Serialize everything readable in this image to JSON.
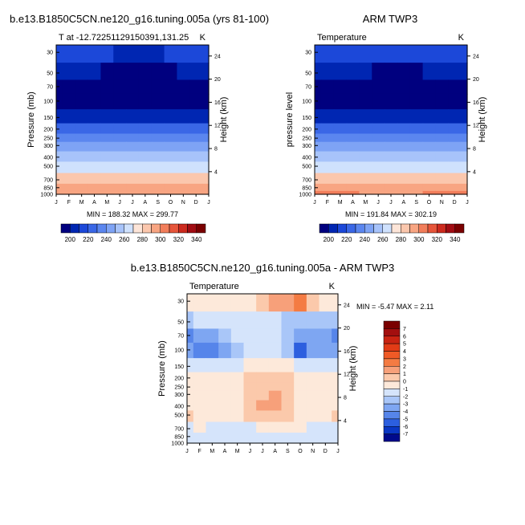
{
  "chart_data": [
    {
      "type": "heatmap",
      "title": "b.e13.B1850C5CN.ne120_g16.tuning.005a (yrs 81-100)",
      "subtitle_left": "T at -12.72251129150391,131.25",
      "subtitle_right": "K",
      "xlabel": "",
      "ylabel": "Pressure (mb)",
      "ylabel_right": "Height (km)",
      "x_ticks": [
        "J",
        "F",
        "M",
        "A",
        "M",
        "J",
        "J",
        "A",
        "S",
        "O",
        "N",
        "D",
        "J"
      ],
      "y_ticks": [
        "30",
        "50",
        "70",
        "100",
        "150",
        "200",
        "250",
        "300",
        "400",
        "500",
        "700",
        "850",
        "1000"
      ],
      "y_right_ticks": [
        "24",
        "20",
        "16",
        "12",
        "8",
        "4"
      ],
      "stats": "MIN = 188.32 MAX = 299.77",
      "colorbar_labels": [
        "200",
        "220",
        "240",
        "260",
        "280",
        "300",
        "320",
        "340"
      ],
      "colorbar_colors": [
        "#00007f",
        "#0026b2",
        "#1c48d9",
        "#3a67e6",
        "#5b86ef",
        "#7ea3f5",
        "#a7c3fa",
        "#cfe1fd",
        "#fde5d8",
        "#fbc7ad",
        "#f8a582",
        "#f27e5b",
        "#e6553a",
        "#cc2a1e",
        "#a10c12",
        "#7a0000"
      ],
      "levels": [
        200,
        210,
        220,
        230,
        240,
        250,
        260,
        270,
        280,
        290,
        300,
        310,
        320,
        330,
        340
      ],
      "month_values": {
        "30": [
          210,
          210,
          211,
          211,
          210,
          209,
          208,
          208,
          209,
          210,
          211,
          211,
          210
        ],
        "50": [
          203,
          203,
          202,
          200,
          198,
          196,
          195,
          195,
          196,
          198,
          200,
          202,
          203
        ],
        "70": [
          192,
          192,
          192,
          192,
          193,
          194,
          195,
          195,
          194,
          193,
          192,
          192,
          192
        ],
        "100": [
          193,
          193,
          193,
          193,
          194,
          194,
          195,
          195,
          194,
          194,
          193,
          193,
          193
        ],
        "150": [
          207,
          207,
          207,
          207,
          207,
          207,
          207,
          207,
          207,
          207,
          207,
          207,
          207
        ],
        "200": [
          221,
          221,
          221,
          221,
          221,
          221,
          221,
          221,
          221,
          221,
          221,
          221,
          221
        ],
        "250": [
          231,
          231,
          231,
          231,
          231,
          231,
          231,
          231,
          231,
          231,
          231,
          231,
          231
        ],
        "300": [
          241,
          241,
          241,
          241,
          241,
          241,
          241,
          241,
          241,
          241,
          241,
          241,
          241
        ],
        "400": [
          257,
          257,
          257,
          257,
          257,
          257,
          257,
          257,
          257,
          257,
          257,
          257,
          257
        ],
        "500": [
          267,
          267,
          267,
          267,
          267,
          267,
          267,
          267,
          267,
          267,
          267,
          267,
          267
        ],
        "700": [
          283,
          283,
          283,
          282,
          281,
          280,
          280,
          280,
          281,
          282,
          283,
          283,
          283
        ],
        "850": [
          293,
          293,
          293,
          292,
          291,
          290,
          290,
          290,
          291,
          292,
          293,
          293,
          293
        ],
        "1000": [
          299,
          299,
          299,
          298,
          297,
          296,
          296,
          296,
          297,
          298,
          299,
          299,
          299
        ]
      }
    },
    {
      "type": "heatmap",
      "title": "ARM TWP3",
      "subtitle_left": "Temperature",
      "subtitle_right": "K",
      "xlabel": "",
      "ylabel": "pressure level",
      "ylabel_right": "Height (km)",
      "x_ticks": [
        "J",
        "F",
        "M",
        "A",
        "M",
        "J",
        "J",
        "A",
        "S",
        "O",
        "N",
        "D",
        "J"
      ],
      "y_ticks": [
        "30",
        "50",
        "70",
        "100",
        "150",
        "200",
        "250",
        "300",
        "400",
        "500",
        "700",
        "850",
        "1000"
      ],
      "y_right_ticks": [
        "24",
        "20",
        "16",
        "12",
        "8",
        "4"
      ],
      "stats": "MIN = 191.84 MAX = 302.19",
      "colorbar_labels": [
        "200",
        "220",
        "240",
        "260",
        "280",
        "300",
        "320",
        "340"
      ],
      "colorbar_colors": [
        "#00007f",
        "#0026b2",
        "#1c48d9",
        "#3a67e6",
        "#5b86ef",
        "#7ea3f5",
        "#a7c3fa",
        "#cfe1fd",
        "#fde5d8",
        "#fbc7ad",
        "#f8a582",
        "#f27e5b",
        "#e6553a",
        "#cc2a1e",
        "#a10c12",
        "#7a0000"
      ],
      "levels": [
        200,
        210,
        220,
        230,
        240,
        250,
        260,
        270,
        280,
        290,
        300,
        310,
        320,
        330,
        340
      ],
      "month_values": {
        "30": [
          215,
          215,
          216,
          216,
          215,
          214,
          213,
          213,
          214,
          215,
          216,
          216,
          215
        ],
        "50": [
          206,
          206,
          205,
          203,
          201,
          199,
          198,
          198,
          199,
          201,
          203,
          205,
          206
        ],
        "70": [
          196,
          196,
          196,
          195,
          194,
          193,
          193,
          193,
          194,
          195,
          196,
          196,
          196
        ],
        "100": [
          194,
          194,
          194,
          194,
          195,
          195,
          196,
          196,
          195,
          195,
          194,
          194,
          194
        ],
        "150": [
          208,
          208,
          208,
          208,
          208,
          208,
          208,
          208,
          208,
          208,
          208,
          208,
          208
        ],
        "200": [
          222,
          222,
          222,
          222,
          222,
          222,
          222,
          222,
          222,
          222,
          222,
          222,
          222
        ],
        "250": [
          232,
          232,
          232,
          232,
          232,
          232,
          232,
          232,
          232,
          232,
          232,
          232,
          232
        ],
        "300": [
          242,
          242,
          242,
          242,
          242,
          242,
          242,
          242,
          242,
          242,
          242,
          242,
          242
        ],
        "400": [
          257,
          257,
          257,
          257,
          257,
          257,
          257,
          257,
          257,
          257,
          257,
          257,
          257
        ],
        "500": [
          268,
          268,
          268,
          268,
          268,
          268,
          268,
          268,
          268,
          268,
          268,
          268,
          268
        ],
        "700": [
          284,
          284,
          284,
          283,
          282,
          281,
          281,
          281,
          282,
          283,
          284,
          284,
          284
        ],
        "850": [
          294,
          294,
          294,
          293,
          292,
          291,
          291,
          291,
          292,
          293,
          294,
          294,
          294
        ],
        "1000": [
          301,
          301,
          301,
          300,
          299,
          298,
          298,
          298,
          299,
          300,
          301,
          301,
          301
        ]
      }
    },
    {
      "type": "heatmap",
      "title": "b.e13.B1850C5CN.ne120_g16.tuning.005a - ARM TWP3",
      "subtitle_left": "Temperature",
      "subtitle_right": "K",
      "xlabel": "",
      "ylabel": "Pressure (mb)",
      "ylabel_right": "Height (km)",
      "x_ticks": [
        "J",
        "F",
        "M",
        "A",
        "M",
        "J",
        "J",
        "A",
        "S",
        "O",
        "N",
        "D",
        "J"
      ],
      "y_ticks": [
        "30",
        "50",
        "70",
        "100",
        "150",
        "200",
        "250",
        "300",
        "400",
        "500",
        "700",
        "850",
        "1000"
      ],
      "y_right_ticks": [
        "24",
        "20",
        "16",
        "12",
        "8",
        "4"
      ],
      "stats": "MIN =  -5.47 MAX =   2.11",
      "colorbar_labels": [
        "7",
        "6",
        "5",
        "4",
        "3",
        "2",
        "1",
        "0",
        "-1",
        "-2",
        "-3",
        "-4",
        "-5",
        "-6",
        "-7"
      ],
      "colorbar_colors": [
        "#7a0000",
        "#a30f0f",
        "#c92312",
        "#e23b16",
        "#ef5a26",
        "#f47b43",
        "#f7a07a",
        "#fbc9ab",
        "#fde9da",
        "#d5e4fb",
        "#a9c6f8",
        "#7ea6f2",
        "#5685ea",
        "#2c5fdf",
        "#0a37c4",
        "#000a8c"
      ],
      "levels": [
        -7,
        -6,
        -5,
        -4,
        -3,
        -2,
        -1,
        0,
        1,
        2,
        3,
        4,
        5,
        6,
        7
      ],
      "month_values": {
        "30": [
          -0.5,
          -0.3,
          -0.2,
          -0.5,
          -0.8,
          -0.6,
          0.4,
          1.2,
          1.8,
          2.1,
          0.6,
          -0.3,
          -0.5
        ],
        "50": [
          -2.5,
          -2.0,
          -1.8,
          -1.5,
          -1.6,
          -1.8,
          -1.5,
          -1.8,
          -2.2,
          -2.6,
          -2.4,
          -2.2,
          -2.5
        ],
        "70": [
          -4.2,
          -3.9,
          -3.3,
          -2.6,
          -1.8,
          -1.4,
          -1.3,
          -1.7,
          -2.8,
          -3.6,
          -3.2,
          -3.4,
          -4.2
        ],
        "100": [
          -3.8,
          -4.4,
          -4.2,
          -3.8,
          -2.6,
          -1.7,
          -1.6,
          -2.0,
          -3.0,
          -5.2,
          -3.6,
          -3.8,
          -3.8
        ],
        "150": [
          -1.2,
          -1.3,
          -1.3,
          -1.2,
          -1.1,
          -0.9,
          -0.8,
          -0.8,
          -0.9,
          -1.1,
          -1.2,
          -1.2,
          -1.2
        ],
        "200": [
          -0.8,
          -0.7,
          -0.6,
          -0.5,
          -0.3,
          0.2,
          0.6,
          0.7,
          0.3,
          -0.3,
          -0.6,
          -0.7,
          -0.8
        ],
        "250": [
          -0.6,
          -0.6,
          -0.5,
          -0.4,
          -0.2,
          0.3,
          0.8,
          0.9,
          0.4,
          -0.2,
          -0.5,
          -0.6,
          -0.6
        ],
        "300": [
          -0.5,
          -0.5,
          -0.5,
          -0.4,
          -0.2,
          0.4,
          0.9,
          1.0,
          0.5,
          -0.2,
          -0.5,
          -0.5,
          -0.5
        ],
        "400": [
          -0.4,
          -0.4,
          -0.4,
          -0.3,
          -0.1,
          0.5,
          1.0,
          1.1,
          0.5,
          -0.1,
          -0.4,
          -0.4,
          -0.4
        ],
        "500": [
          0.2,
          -0.3,
          -0.4,
          -0.3,
          -0.1,
          0.4,
          0.8,
          0.9,
          0.3,
          -0.2,
          -0.3,
          -0.2,
          0.2
        ],
        "700": [
          -1.2,
          -1.0,
          -1.1,
          -1.2,
          -1.3,
          -1.2,
          -0.9,
          -0.8,
          -0.9,
          -1.0,
          -1.1,
          -1.2,
          -1.2
        ],
        "850": [
          -1.4,
          -1.3,
          -1.3,
          -1.4,
          -1.4,
          -1.4,
          -1.3,
          -1.3,
          -1.3,
          -1.4,
          -1.4,
          -1.4,
          -1.4
        ],
        "1000": [
          -1.6,
          -1.6,
          -1.6,
          -1.6,
          -1.6,
          -1.6,
          -1.6,
          -1.6,
          -1.6,
          -1.6,
          -1.6,
          -1.6,
          -1.6
        ]
      }
    }
  ]
}
